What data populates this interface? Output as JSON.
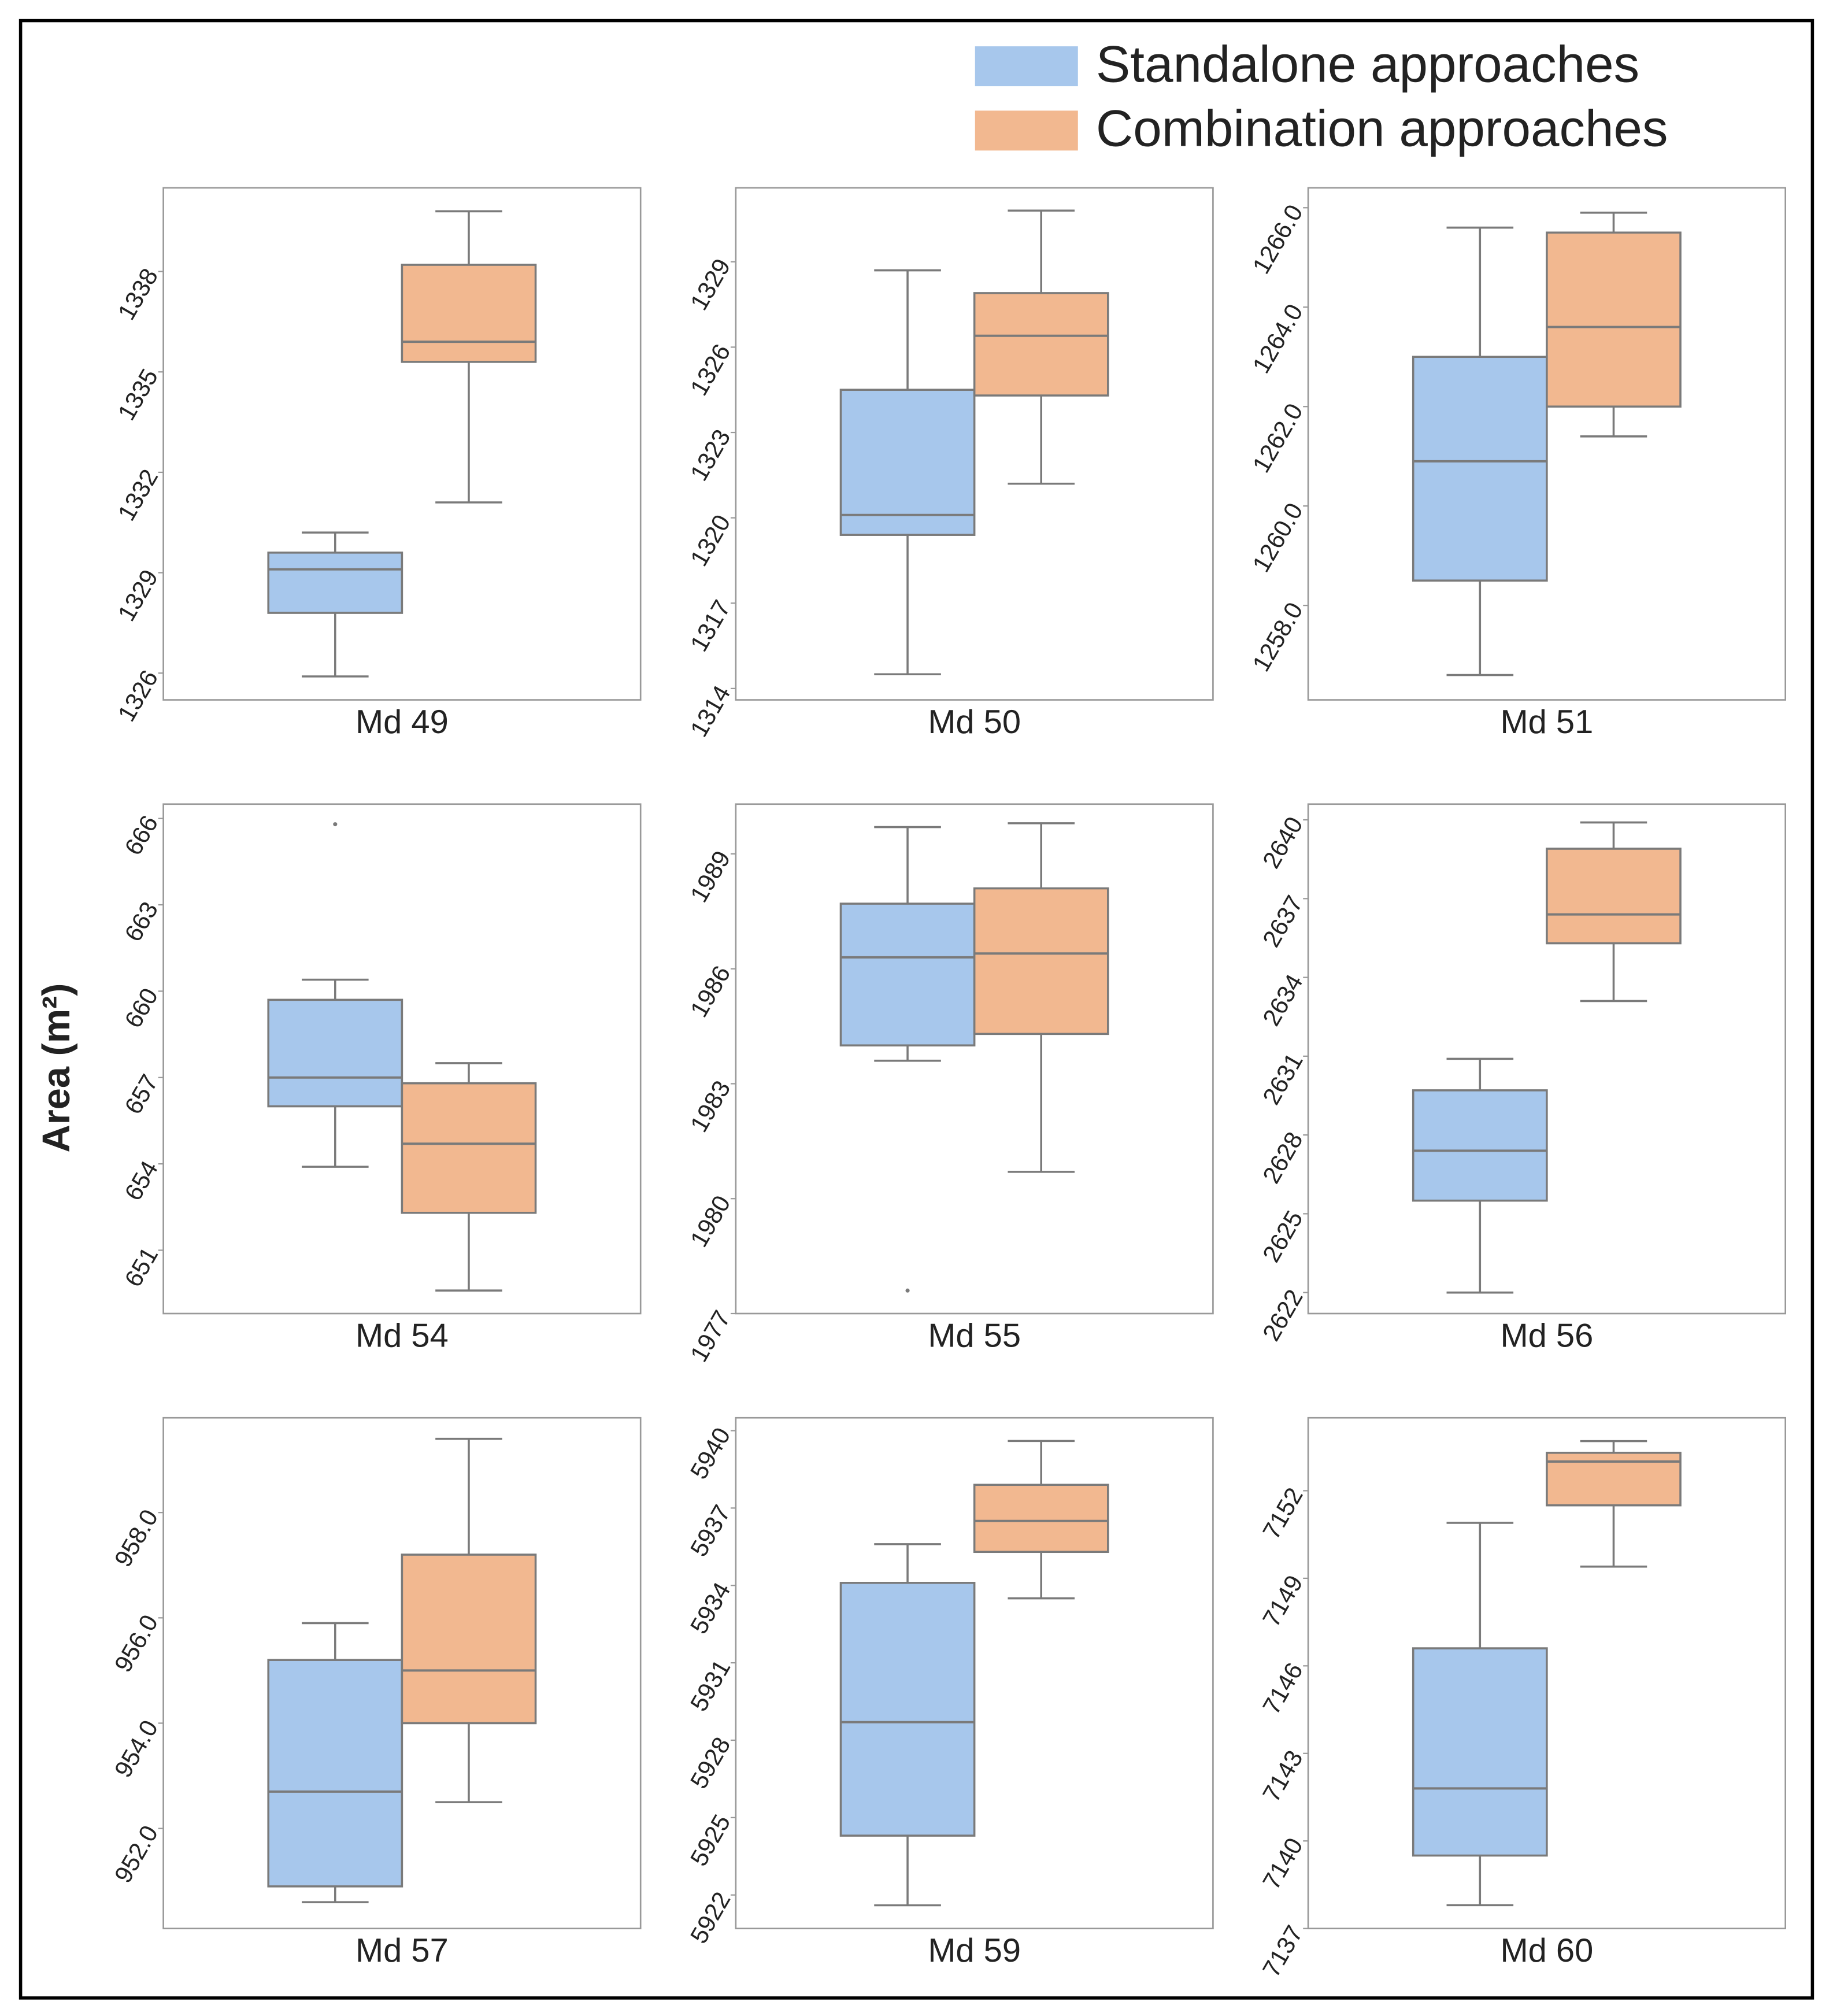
{
  "ylabel": "Area (m²)",
  "series": [
    {
      "name": "Standalone approaches",
      "color": "#a7c7ec"
    },
    {
      "name": "Combination approaches",
      "color": "#f2b890"
    }
  ],
  "chart_data": [
    {
      "type": "box",
      "xlabel": "Md 49",
      "ylim": [
        1325.2,
        1340.5
      ],
      "yticks": [
        1326,
        1329,
        1332,
        1335,
        1338
      ],
      "boxes": [
        {
          "min": 1325.9,
          "q1": 1327.8,
          "median": 1329.1,
          "q3": 1329.6,
          "max": 1330.2
        },
        {
          "min": 1331.1,
          "q1": 1335.3,
          "median": 1335.9,
          "q3": 1338.2,
          "max": 1339.8
        }
      ]
    },
    {
      "type": "box",
      "xlabel": "Md 50",
      "ylim": [
        1313.6,
        1331.6
      ],
      "yticks": [
        1314,
        1317,
        1320,
        1323,
        1326,
        1329
      ],
      "boxes": [
        {
          "min": 1314.5,
          "q1": 1319.4,
          "median": 1320.1,
          "q3": 1324.5,
          "max": 1328.7
        },
        {
          "min": 1321.2,
          "q1": 1324.3,
          "median": 1326.4,
          "q3": 1327.9,
          "max": 1330.8
        }
      ]
    },
    {
      "type": "box",
      "xlabel": "Md 51",
      "ylim": [
        1256.1,
        1266.4
      ],
      "yticks": [
        {
          "value": 1258,
          "label": "1258.0"
        },
        {
          "value": 1260,
          "label": "1260.0"
        },
        {
          "value": 1262,
          "label": "1262.0"
        },
        {
          "value": 1264,
          "label": "1264.0"
        },
        {
          "value": 1266,
          "label": "1266.0"
        }
      ],
      "boxes": [
        {
          "min": 1256.6,
          "q1": 1258.5,
          "median": 1260.9,
          "q3": 1263.0,
          "max": 1265.6
        },
        {
          "min": 1261.4,
          "q1": 1262.0,
          "median": 1263.6,
          "q3": 1265.5,
          "max": 1265.9
        }
      ]
    },
    {
      "type": "box",
      "xlabel": "Md 54",
      "ylim": [
        648.8,
        666.5
      ],
      "yticks": [
        651,
        654,
        657,
        660,
        663,
        666
      ],
      "boxes": [
        {
          "min": 653.9,
          "q1": 656.0,
          "median": 657.0,
          "q3": 659.7,
          "max": 660.4,
          "outliers": [
            665.8
          ]
        },
        {
          "min": 649.6,
          "q1": 652.3,
          "median": 654.7,
          "q3": 656.8,
          "max": 657.5
        }
      ]
    },
    {
      "type": "box",
      "xlabel": "Md 55",
      "ylim": [
        1977,
        1990.3
      ],
      "yticks": [
        1977,
        1980,
        1983,
        1986,
        1989
      ],
      "boxes": [
        {
          "min": 1983.6,
          "q1": 1984.0,
          "median": 1986.3,
          "q3": 1987.7,
          "max": 1989.7,
          "outliers": [
            1977.6
          ]
        },
        {
          "min": 1980.7,
          "q1": 1984.3,
          "median": 1986.4,
          "q3": 1988.1,
          "max": 1989.8
        }
      ]
    },
    {
      "type": "box",
      "xlabel": "Md 56",
      "ylim": [
        2621.2,
        2640.6
      ],
      "yticks": [
        2622,
        2625,
        2628,
        2631,
        2634,
        2637,
        2640
      ],
      "boxes": [
        {
          "min": 2622.0,
          "q1": 2625.5,
          "median": 2627.4,
          "q3": 2629.7,
          "max": 2630.9
        },
        {
          "min": 2633.1,
          "q1": 2635.3,
          "median": 2636.4,
          "q3": 2638.9,
          "max": 2639.9
        }
      ]
    },
    {
      "type": "box",
      "xlabel": "Md 57",
      "ylim": [
        950.1,
        959.8
      ],
      "yticks": [
        {
          "value": 952,
          "label": "952.0"
        },
        {
          "value": 954,
          "label": "954.0"
        },
        {
          "value": 956,
          "label": "956.0"
        },
        {
          "value": 958,
          "label": "958.0"
        }
      ],
      "boxes": [
        {
          "min": 950.6,
          "q1": 950.9,
          "median": 952.7,
          "q3": 955.2,
          "max": 955.9
        },
        {
          "min": 952.5,
          "q1": 954.0,
          "median": 955.0,
          "q3": 957.2,
          "max": 959.4
        }
      ]
    },
    {
      "type": "box",
      "xlabel": "Md 59",
      "ylim": [
        5920.7,
        5940.5
      ],
      "yticks": [
        5922,
        5925,
        5928,
        5931,
        5934,
        5937,
        5940
      ],
      "boxes": [
        {
          "min": 5921.6,
          "q1": 5924.3,
          "median": 5928.7,
          "q3": 5934.1,
          "max": 5935.6
        },
        {
          "min": 5933.5,
          "q1": 5935.3,
          "median": 5936.5,
          "q3": 5937.9,
          "max": 5939.6
        }
      ]
    },
    {
      "type": "box",
      "xlabel": "Md 60",
      "ylim": [
        7137,
        7154.5
      ],
      "yticks": [
        7137,
        7140,
        7143,
        7146,
        7149,
        7152
      ],
      "boxes": [
        {
          "min": 7137.8,
          "q1": 7139.5,
          "median": 7141.8,
          "q3": 7146.6,
          "max": 7150.9
        },
        {
          "min": 7149.4,
          "q1": 7151.5,
          "median": 7153.0,
          "q3": 7153.3,
          "max": 7153.7
        }
      ]
    }
  ]
}
